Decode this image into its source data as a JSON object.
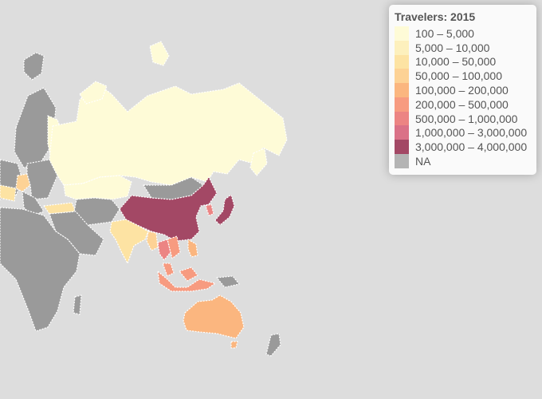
{
  "map": {
    "background": "#dddddd",
    "na_color": "#9a9a9a",
    "regions": [
      {
        "name": "Russia",
        "bin": "100 – 5,000"
      },
      {
        "name": "Kazakhstan",
        "bin": "100 – 5,000"
      },
      {
        "name": "Finland",
        "bin": "100 – 5,000"
      },
      {
        "name": "Mongolia",
        "bin": null
      },
      {
        "name": "China",
        "bin": "3,000,000 – 4,000,000"
      },
      {
        "name": "Japan",
        "bin": "3,000,000 – 4,000,000"
      },
      {
        "name": "South Korea",
        "bin": "500,000 – 1,000,000"
      },
      {
        "name": "India",
        "bin": "10,000 – 50,000"
      },
      {
        "name": "Thailand",
        "bin": "500,000 – 1,000,000"
      },
      {
        "name": "Myanmar",
        "bin": "50,000 – 100,000"
      },
      {
        "name": "Vietnam",
        "bin": "200,000 – 500,000"
      },
      {
        "name": "Malaysia",
        "bin": "200,000 – 500,000"
      },
      {
        "name": "Indonesia",
        "bin": "200,000 – 500,000"
      },
      {
        "name": "Philippines",
        "bin": "100,000 – 200,000"
      },
      {
        "name": "Australia",
        "bin": "100,000 – 200,000"
      },
      {
        "name": "New Zealand",
        "bin": null
      },
      {
        "name": "Germany",
        "bin": "50,000 – 100,000"
      },
      {
        "name": "France",
        "bin": "10,000 – 50,000"
      },
      {
        "name": "Turkey",
        "bin": "10,000 – 50,000"
      },
      {
        "name": "Middle East",
        "bin": null
      },
      {
        "name": "Africa",
        "bin": null
      },
      {
        "name": "Europe",
        "bin": null
      }
    ]
  },
  "legend": {
    "title": "Travelers: 2015",
    "items": [
      {
        "label": "100 – 5,000",
        "color": "#fefbd7"
      },
      {
        "label": "5,000 – 10,000",
        "color": "#fdf0bd"
      },
      {
        "label": "10,000 – 50,000",
        "color": "#fde3a3"
      },
      {
        "label": "50,000 – 100,000",
        "color": "#fdd295"
      },
      {
        "label": "100,000 – 200,000",
        "color": "#fbb67f"
      },
      {
        "label": "200,000 – 500,000",
        "color": "#f79b80"
      },
      {
        "label": "500,000 – 1,000,000",
        "color": "#ec8483"
      },
      {
        "label": "1,000,000 – 3,000,000",
        "color": "#da7187"
      },
      {
        "label": "3,000,000 – 4,000,000",
        "color": "#a34865"
      },
      {
        "label": "NA",
        "color": "#b4b4b4"
      }
    ]
  }
}
